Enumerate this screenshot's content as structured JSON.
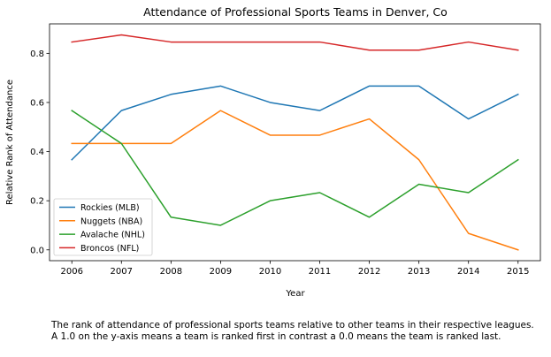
{
  "chart_data": {
    "type": "line",
    "title": "Attendance of Professional Sports Teams in Denver, Co",
    "xlabel": "Year",
    "ylabel": "Relative Rank of Attendance",
    "x": [
      2006,
      2007,
      2008,
      2009,
      2010,
      2011,
      2012,
      2013,
      2014,
      2015
    ],
    "xlim": [
      2005.55,
      2015.45
    ],
    "ylim": [
      -0.044,
      0.92
    ],
    "yticks": [
      0.0,
      0.2,
      0.4,
      0.6,
      0.8
    ],
    "ytick_labels": [
      "0.0",
      "0.2",
      "0.4",
      "0.6",
      "0.8"
    ],
    "xtick_labels": [
      "2006",
      "2007",
      "2008",
      "2009",
      "2010",
      "2011",
      "2012",
      "2013",
      "2014",
      "2015"
    ],
    "grid": false,
    "legend_position": "lower-left",
    "series": [
      {
        "name": "Rockies (MLB)",
        "color": "#1f77b4",
        "values": [
          0.367,
          0.567,
          0.633,
          0.667,
          0.6,
          0.567,
          0.667,
          0.667,
          0.533,
          0.633
        ]
      },
      {
        "name": "Nuggets (NBA)",
        "color": "#ff7f0e",
        "values": [
          0.433,
          0.433,
          0.433,
          0.567,
          0.467,
          0.467,
          0.533,
          0.367,
          0.067,
          0.0
        ]
      },
      {
        "name": "Avalache (NHL)",
        "color": "#2ca02c",
        "values": [
          0.567,
          0.433,
          0.133,
          0.1,
          0.2,
          0.233,
          0.133,
          0.267,
          0.233,
          0.367
        ]
      },
      {
        "name": "Broncos (NFL)",
        "color": "#d62728",
        "values": [
          0.846,
          0.875,
          0.846,
          0.846,
          0.846,
          0.846,
          0.813,
          0.813,
          0.846,
          0.813
        ]
      }
    ]
  },
  "caption": {
    "line1": "The rank of attendance of professional sports teams relative to other teams in their respective leagues.",
    "line2": "A 1.0 on the y-axis means a team is ranked first in contrast a 0.0 means the team is ranked last."
  }
}
